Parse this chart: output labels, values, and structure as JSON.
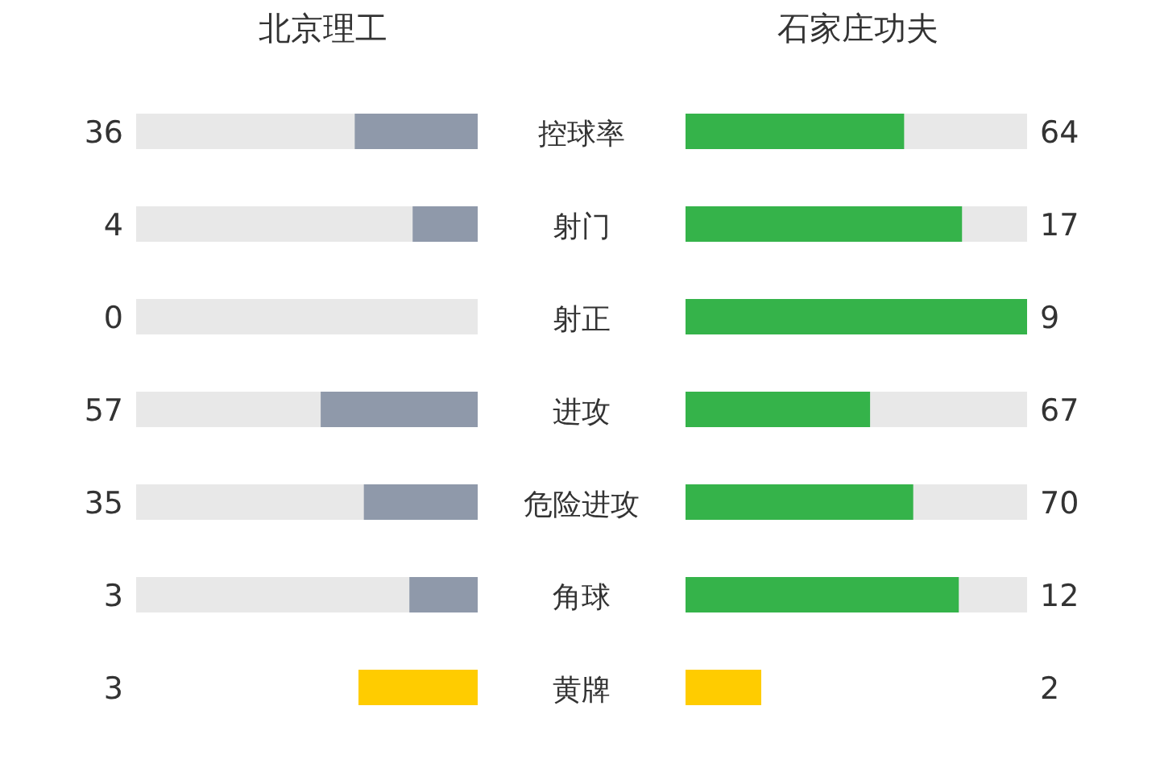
{
  "chart_data": {
    "type": "other",
    "categories": [
      "控球率",
      "射门",
      "射正",
      "进攻",
      "危险进攻",
      "角球",
      "黄牌"
    ],
    "series": [
      {
        "name": "北京理工",
        "colors": [
          "#8f99aa",
          "#8f99aa",
          "#8f99aa",
          "#8f99aa",
          "#8f99aa",
          "#8f99aa",
          "#ffcc00"
        ],
        "values": [
          36,
          4,
          0,
          57,
          35,
          3,
          3
        ]
      },
      {
        "name": "石家庄功夫",
        "colors": [
          "#35b34a",
          "#35b34a",
          "#35b34a",
          "#35b34a",
          "#35b34a",
          "#35b34a",
          "#ffcc00"
        ],
        "values": [
          64,
          17,
          9,
          67,
          70,
          12,
          2
        ]
      }
    ],
    "data_labels": true
  }
}
